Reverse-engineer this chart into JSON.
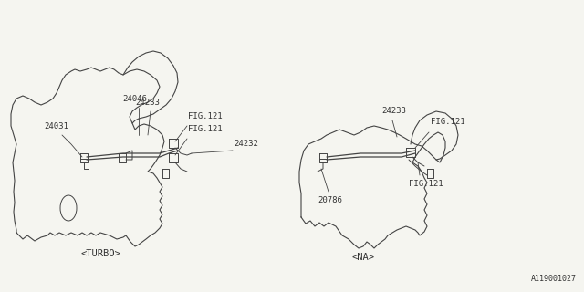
{
  "bg_color": "#f5f5f0",
  "line_color": "#444444",
  "text_color": "#333333",
  "turbo_label": "<TURBO>",
  "na_label": "<NA>",
  "diagram_id": "A119001027",
  "font_size": 6.5,
  "label_font_size": 7.5
}
